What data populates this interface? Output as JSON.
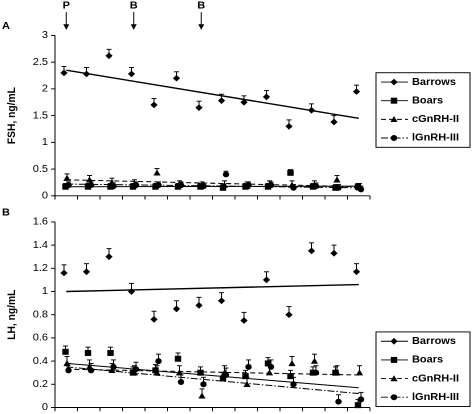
{
  "chart_data": [
    {
      "type": "line",
      "panel_label": "A",
      "ylabel": "FSH, ng/mL",
      "categories": [
        null,
        null,
        null,
        null,
        null,
        null,
        null,
        null,
        null,
        null,
        null,
        null,
        null,
        null
      ],
      "ylim": [
        0,
        3
      ],
      "yticks": [
        0,
        0.5,
        1,
        1.5,
        2,
        2.5,
        3
      ],
      "legend": "right",
      "annotations": [
        {
          "text": "P",
          "x": 0
        },
        {
          "text": "B",
          "x": 3
        },
        {
          "text": "B",
          "x": 6
        }
      ],
      "series": [
        {
          "name": "Barrows",
          "color": "#000000",
          "marker": "diamond",
          "line_style": "solid",
          "values": [
            2.3,
            2.28,
            2.62,
            2.28,
            1.7,
            2.2,
            1.65,
            1.78,
            1.75,
            1.85,
            1.3,
            1.6,
            1.38,
            1.95
          ],
          "errors": [
            0.12,
            0.12,
            0.12,
            0.12,
            0.12,
            0.12,
            0.12,
            0.12,
            0.12,
            0.12,
            0.12,
            0.12,
            0.12,
            0.12
          ],
          "trend": [
            2.35,
            1.45
          ]
        },
        {
          "name": "Boars",
          "color": "#000000",
          "marker": "square",
          "line_style": "solid",
          "values": [
            0.17,
            0.17,
            0.17,
            0.17,
            0.17,
            0.17,
            0.17,
            0.15,
            0.17,
            0.17,
            0.43,
            0.17,
            0.15,
            0.17
          ],
          "errors": [
            0.06,
            0.06,
            0.06,
            0.06,
            0.06,
            0.06,
            0.06,
            0.06,
            0.06,
            0.06,
            0.06,
            0.06,
            0.06,
            0.06
          ],
          "trend": [
            0.17,
            0.18
          ]
        },
        {
          "name": "cGnRH-II",
          "color": "#000000",
          "marker": "triangle",
          "line_style": "dashed",
          "values": [
            0.33,
            0.3,
            0.25,
            0.22,
            0.43,
            0.2,
            0.18,
            0.2,
            0.18,
            0.2,
            0.2,
            0.2,
            0.3,
            0.15
          ],
          "errors": [
            0.08,
            0.08,
            0.08,
            0.08,
            0.08,
            0.08,
            0.08,
            0.08,
            0.08,
            0.08,
            0.08,
            0.08,
            0.08,
            0.08
          ],
          "trend": [
            0.3,
            0.17
          ]
        },
        {
          "name": "lGnRH-III",
          "color": "#000000",
          "marker": "circle",
          "line_style": "dashdot",
          "values": [
            0.2,
            0.2,
            0.18,
            0.2,
            0.2,
            0.2,
            0.18,
            0.4,
            0.2,
            0.2,
            0.15,
            0.18,
            0.15,
            0.12
          ],
          "errors": [
            0.06,
            0.06,
            0.06,
            0.06,
            0.06,
            0.06,
            0.06,
            0.06,
            0.06,
            0.06,
            0.06,
            0.06,
            0.06,
            0.06
          ],
          "trend": [
            0.22,
            0.15
          ]
        }
      ]
    },
    {
      "type": "line",
      "panel_label": "B",
      "ylabel": "LH, ng/mL",
      "categories": [
        null,
        null,
        null,
        null,
        null,
        null,
        null,
        null,
        null,
        null,
        null,
        null,
        null,
        null
      ],
      "ylim": [
        0,
        1.6
      ],
      "yticks": [
        0,
        0.2,
        0.4,
        0.6,
        0.8,
        1,
        1.2,
        1.4,
        1.6
      ],
      "legend": "right",
      "series": [
        {
          "name": "Barrows",
          "color": "#000000",
          "marker": "diamond",
          "line_style": "solid",
          "values": [
            1.16,
            1.17,
            1.3,
            1.0,
            0.76,
            0.85,
            0.88,
            0.92,
            0.75,
            1.1,
            0.8,
            1.35,
            1.33,
            1.17
          ],
          "errors": [
            0.07,
            0.07,
            0.07,
            0.07,
            0.07,
            0.07,
            0.07,
            0.07,
            0.07,
            0.07,
            0.07,
            0.07,
            0.07,
            0.07
          ],
          "trend": [
            1.0,
            1.06
          ]
        },
        {
          "name": "Boars",
          "color": "#000000",
          "marker": "square",
          "line_style": "solid",
          "values": [
            0.48,
            0.47,
            0.47,
            0.3,
            0.32,
            0.42,
            0.3,
            0.25,
            0.27,
            0.38,
            0.27,
            0.3,
            0.3,
            0.02
          ],
          "errors": [
            0.05,
            0.05,
            0.05,
            0.05,
            0.05,
            0.05,
            0.05,
            0.05,
            0.05,
            0.05,
            0.05,
            0.05,
            0.05,
            0.05
          ],
          "trend": [
            0.38,
            0.17
          ]
        },
        {
          "name": "cGnRH-II",
          "color": "#000000",
          "marker": "triangle",
          "line_style": "dashed",
          "values": [
            0.38,
            0.35,
            0.32,
            0.3,
            0.3,
            0.3,
            0.1,
            0.3,
            0.2,
            0.3,
            0.38,
            0.4,
            0.3,
            0.3
          ],
          "errors": [
            0.06,
            0.06,
            0.06,
            0.06,
            0.06,
            0.06,
            0.06,
            0.06,
            0.06,
            0.06,
            0.06,
            0.06,
            0.06,
            0.06
          ],
          "trend": [
            0.33,
            0.28
          ]
        },
        {
          "name": "lGnRH-III",
          "color": "#000000",
          "marker": "circle",
          "line_style": "dashdot",
          "values": [
            0.32,
            0.32,
            0.35,
            0.33,
            0.4,
            0.22,
            0.2,
            0.28,
            0.35,
            0.35,
            0.2,
            0.3,
            0.05,
            0.07
          ],
          "errors": [
            0.06,
            0.06,
            0.06,
            0.06,
            0.06,
            0.06,
            0.06,
            0.06,
            0.06,
            0.06,
            0.06,
            0.06,
            0.06,
            0.06
          ],
          "trend": [
            0.35,
            0.12
          ]
        }
      ]
    }
  ]
}
